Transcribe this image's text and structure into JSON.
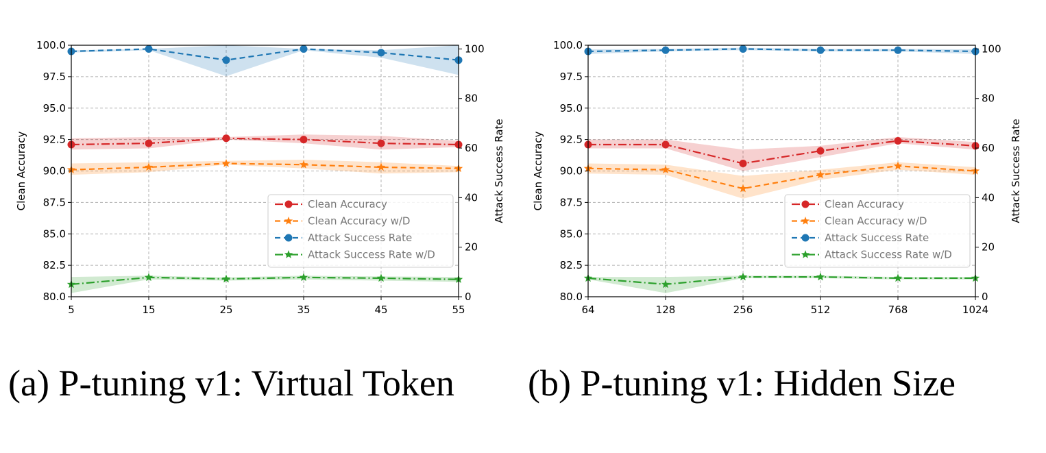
{
  "captions": {
    "a": "(a) P-tuning v1: Virtual Token",
    "b": "(b) P-tuning v1: Hidden Size"
  },
  "colors": {
    "clean_accuracy": "#d62728",
    "clean_accuracy_wd": "#ff7f0e",
    "attack_success_rate": "#1f77b4",
    "attack_success_rate_wd": "#2ca02c",
    "grid": "#b0b0b0"
  },
  "chart_data": [
    {
      "type": "line",
      "caption": "(a) P-tuning v1: Virtual Token",
      "x_tick_labels": [
        "5",
        "15",
        "25",
        "35",
        "45",
        "55"
      ],
      "ylabel": "Clean Accuracy",
      "y2label": "Attack Success Rate",
      "ylim": [
        80.0,
        100.0
      ],
      "y2lim": [
        0,
        101.5
      ],
      "yticks": [
        "80.0",
        "82.5",
        "85.0",
        "87.5",
        "90.0",
        "92.5",
        "95.0",
        "97.5",
        "100.0"
      ],
      "y2ticks": [
        "0",
        "20",
        "40",
        "60",
        "80",
        "100"
      ],
      "grid": true,
      "legend_position": "lower-right",
      "series": [
        {
          "name": "Clean Accuracy",
          "axis": "left",
          "marker": "circle",
          "line": "dashdot",
          "color_key": "clean_accuracy",
          "values": [
            92.1,
            92.2,
            92.6,
            92.5,
            92.2,
            92.1
          ],
          "lower": [
            91.7,
            91.8,
            92.5,
            92.2,
            91.7,
            91.9
          ],
          "upper": [
            92.6,
            92.7,
            92.7,
            92.9,
            92.8,
            92.4
          ]
        },
        {
          "name": "Clean Accuracy w/D",
          "axis": "left",
          "marker": "star",
          "line": "dashed",
          "color_key": "clean_accuracy_wd",
          "values": [
            90.1,
            90.3,
            90.6,
            90.5,
            90.3,
            90.2
          ],
          "lower": [
            89.7,
            89.9,
            90.5,
            90.2,
            89.8,
            89.9
          ],
          "upper": [
            90.6,
            90.7,
            90.8,
            90.9,
            90.7,
            90.4
          ]
        },
        {
          "name": "Attack Success Rate",
          "axis": "right",
          "marker": "circle",
          "line": "dashed",
          "color_key": "attack_success_rate",
          "values": [
            99.0,
            100.0,
            95.5,
            100.0,
            98.5,
            95.5
          ],
          "lower": [
            98.5,
            99.5,
            89.0,
            99.5,
            96.5,
            89.5
          ],
          "upper": [
            99.5,
            100.0,
            101.5,
            100.0,
            99.5,
            101.5
          ]
        },
        {
          "name": "Attack Success Rate w/D",
          "axis": "right",
          "marker": "star",
          "line": "dashdot",
          "color_key": "attack_success_rate_wd",
          "values": [
            5.0,
            7.8,
            7.2,
            7.8,
            7.5,
            7.0
          ],
          "lower": [
            1.5,
            7.0,
            6.5,
            7.0,
            6.5,
            6.0
          ],
          "upper": [
            8.0,
            8.5,
            7.8,
            8.5,
            8.2,
            8.0
          ]
        }
      ]
    },
    {
      "type": "line",
      "caption": "(b) P-tuning v1: Hidden Size",
      "x_tick_labels": [
        "64",
        "128",
        "256",
        "512",
        "768",
        "1024"
      ],
      "ylabel": "Clean Accuracy",
      "y2label": "Attack Success Rate",
      "ylim": [
        80.0,
        100.0
      ],
      "y2lim": [
        0,
        101.5
      ],
      "yticks": [
        "80.0",
        "82.5",
        "85.0",
        "87.5",
        "90.0",
        "92.5",
        "95.0",
        "97.5",
        "100.0"
      ],
      "y2ticks": [
        "0",
        "20",
        "40",
        "60",
        "80",
        "100"
      ],
      "grid": true,
      "legend_position": "lower-right",
      "series": [
        {
          "name": "Clean Accuracy",
          "axis": "left",
          "marker": "circle",
          "line": "dashdot",
          "color_key": "clean_accuracy",
          "values": [
            92.1,
            92.1,
            90.6,
            91.6,
            92.4,
            92.0
          ],
          "lower": [
            91.8,
            91.8,
            90.0,
            91.1,
            92.2,
            91.7
          ],
          "upper": [
            92.5,
            92.5,
            91.7,
            92.0,
            92.7,
            92.3
          ]
        },
        {
          "name": "Clean Accuracy w/D",
          "axis": "left",
          "marker": "star",
          "line": "dashed",
          "color_key": "clean_accuracy_wd",
          "values": [
            90.2,
            90.1,
            88.6,
            89.7,
            90.4,
            90.0
          ],
          "lower": [
            89.8,
            89.7,
            87.8,
            89.3,
            90.1,
            89.7
          ],
          "upper": [
            90.6,
            90.5,
            89.6,
            90.1,
            90.7,
            90.3
          ]
        },
        {
          "name": "Attack Success Rate",
          "axis": "right",
          "marker": "circle",
          "line": "dashed",
          "color_key": "attack_success_rate",
          "values": [
            99.0,
            99.5,
            100.0,
            99.5,
            99.5,
            99.0
          ],
          "lower": [
            98.0,
            99.0,
            99.5,
            99.0,
            99.0,
            98.0
          ],
          "upper": [
            99.8,
            100.0,
            100.5,
            100.0,
            100.0,
            99.8
          ]
        },
        {
          "name": "Attack Success Rate w/D",
          "axis": "right",
          "marker": "star",
          "line": "dashdot",
          "color_key": "attack_success_rate_wd",
          "values": [
            7.5,
            5.0,
            8.0,
            8.0,
            7.5,
            7.5
          ],
          "lower": [
            7.0,
            1.5,
            7.5,
            7.5,
            7.0,
            7.0
          ],
          "upper": [
            8.0,
            8.0,
            8.5,
            8.5,
            8.0,
            8.0
          ]
        }
      ]
    }
  ]
}
